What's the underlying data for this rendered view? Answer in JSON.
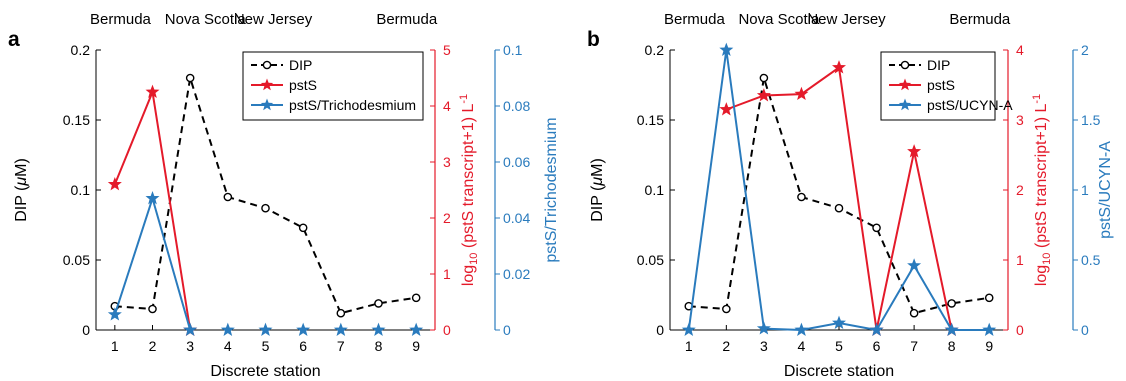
{
  "colors": {
    "dip": "#000000",
    "psts": "#e41a2a",
    "norm": "#2a7bbd",
    "axis": "#000000"
  },
  "chart_data": [
    {
      "panel_label": "a",
      "type": "line",
      "xlabel": "Discrete station",
      "ylabel_left_pre": "DIP (",
      "ylabel_left_mu": "μ",
      "ylabel_left_post": "M)",
      "ylabel_right1_pre": "log",
      "ylabel_right1_sub": "10",
      "ylabel_right1_mid": " (pstS transcript+1) L",
      "ylabel_right1_sup": "-1",
      "ylabel_right2": "pstS/Trichodesmium",
      "regions": [
        {
          "label": "Bermuda",
          "x": 1.15
        },
        {
          "label": "Nova Scotia",
          "x": 3.4
        },
        {
          "label": "New Jersey",
          "x": 5.2
        },
        {
          "label": "Bermuda",
          "x": 8.75
        }
      ],
      "x_ticks": [
        "1",
        "2",
        "3",
        "4",
        "5",
        "6",
        "7",
        "8",
        "9"
      ],
      "xlim": [
        0.5,
        9.5
      ],
      "left_axis": {
        "ylim": [
          0,
          0.2
        ],
        "ticks": [
          0,
          0.05,
          0.1,
          0.15,
          0.2
        ],
        "tick_labels": [
          "0",
          "0.05",
          "0.1",
          "0.15",
          "0.2"
        ]
      },
      "right1_axis": {
        "ylim": [
          0,
          5
        ],
        "ticks": [
          0,
          1,
          2,
          3,
          4,
          5
        ],
        "tick_labels": [
          "0",
          "1",
          "2",
          "3",
          "4",
          "5"
        ]
      },
      "right2_axis": {
        "ylim": [
          0,
          0.1
        ],
        "ticks": [
          0,
          0.02,
          0.04,
          0.06,
          0.08,
          0.1
        ],
        "tick_labels": [
          "0",
          "0.02",
          "0.04",
          "0.06",
          "0.08",
          "0.1"
        ]
      },
      "legend": [
        "DIP",
        "pstS",
        "pstS/Trichodesmium"
      ],
      "series": [
        {
          "name": "DIP",
          "axis": "left",
          "style": "dashed-circle",
          "x": [
            1,
            2,
            3,
            4,
            5,
            6,
            7,
            8,
            9
          ],
          "y": [
            0.017,
            0.015,
            0.18,
            0.095,
            0.087,
            0.073,
            0.012,
            0.019,
            0.023
          ]
        },
        {
          "name": "pstS",
          "axis": "right1",
          "style": "solid-star",
          "x": [
            1,
            2,
            3
          ],
          "y": [
            2.6,
            4.25,
            0
          ]
        },
        {
          "name": "pstS/Trichodesmium",
          "axis": "right2",
          "style": "solid-star",
          "x": [
            1,
            2,
            3,
            4,
            5,
            6,
            7,
            8,
            9
          ],
          "y": [
            0.0055,
            0.047,
            0,
            0,
            0,
            0,
            0,
            0,
            0
          ],
          "segments": [
            [
              0,
              2
            ]
          ]
        }
      ]
    },
    {
      "panel_label": "b",
      "type": "line",
      "xlabel": "Discrete station",
      "ylabel_left_pre": "DIP (",
      "ylabel_left_mu": "μ",
      "ylabel_left_post": "M)",
      "ylabel_right1_pre": "log",
      "ylabel_right1_sub": "10",
      "ylabel_right1_mid": " (pstS transcript+1) L",
      "ylabel_right1_sup": "-1",
      "ylabel_right2": "pstS/UCYN-A",
      "regions": [
        {
          "label": "Bermuda",
          "x": 1.15
        },
        {
          "label": "Nova Scotia",
          "x": 3.4
        },
        {
          "label": "New Jersey",
          "x": 5.2
        },
        {
          "label": "Bermuda",
          "x": 8.75
        }
      ],
      "x_ticks": [
        "1",
        "2",
        "3",
        "4",
        "5",
        "6",
        "7",
        "8",
        "9"
      ],
      "xlim": [
        0.5,
        9.5
      ],
      "left_axis": {
        "ylim": [
          0,
          0.2
        ],
        "ticks": [
          0,
          0.05,
          0.1,
          0.15,
          0.2
        ],
        "tick_labels": [
          "0",
          "0.05",
          "0.1",
          "0.15",
          "0.2"
        ]
      },
      "right1_axis": {
        "ylim": [
          0,
          4
        ],
        "ticks": [
          0,
          1,
          2,
          3,
          4
        ],
        "tick_labels": [
          "0",
          "1",
          "2",
          "3",
          "4"
        ]
      },
      "right2_axis": {
        "ylim": [
          0,
          2
        ],
        "ticks": [
          0,
          0.5,
          1,
          1.5,
          2
        ],
        "tick_labels": [
          "0",
          "0.5",
          "1",
          "1.5",
          "2"
        ]
      },
      "legend": [
        "DIP",
        "pstS",
        "pstS/UCYN-A"
      ],
      "series": [
        {
          "name": "DIP",
          "axis": "left",
          "style": "dashed-circle",
          "x": [
            1,
            2,
            3,
            4,
            5,
            6,
            7,
            8,
            9
          ],
          "y": [
            0.017,
            0.015,
            0.18,
            0.095,
            0.087,
            0.073,
            0.012,
            0.019,
            0.023
          ]
        },
        {
          "name": "pstS",
          "axis": "right1",
          "style": "solid-star",
          "x": [
            2,
            3,
            4,
            5,
            6,
            7,
            8
          ],
          "y": [
            3.15,
            3.35,
            3.37,
            3.75,
            0,
            2.55,
            0
          ]
        },
        {
          "name": "pstS/UCYN-A",
          "axis": "right2",
          "style": "solid-star",
          "x": [
            1,
            2,
            3,
            4,
            5,
            6,
            7,
            8,
            9
          ],
          "y": [
            0,
            2.0,
            0.01,
            0,
            0.05,
            0,
            0.46,
            0,
            0
          ]
        }
      ]
    }
  ]
}
